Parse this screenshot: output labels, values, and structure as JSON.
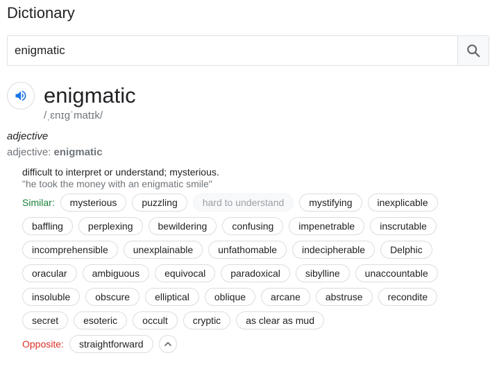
{
  "title": "Dictionary",
  "search": {
    "value": "enigmatic",
    "placeholder": ""
  },
  "entry": {
    "word": "enigmatic",
    "phonetic": "/ˌɛnɪɡˈmatɪk/",
    "part_of_speech": "adjective",
    "forms_label": "adjective: ",
    "forms_value": "enigmatic",
    "definition": "difficult to interpret or understand; mysterious.",
    "example": "\"he took the money with an enigmatic smile\""
  },
  "similar_label": "Similar:",
  "similar_rows": [
    [
      "mysterious",
      "puzzling",
      "hard to understand",
      "mystifying",
      "inexplicable"
    ],
    [
      "baffling",
      "perplexing",
      "bewildering",
      "confusing",
      "impenetrable",
      "inscrutable"
    ],
    [
      "incomprehensible",
      "unexplainable",
      "unfathomable",
      "indecipherable",
      "Delphic"
    ],
    [
      "oracular",
      "ambiguous",
      "equivocal",
      "paradoxical",
      "sibylline",
      "unaccountable"
    ],
    [
      "insoluble",
      "obscure",
      "elliptical",
      "oblique",
      "arcane",
      "abstruse",
      "recondite"
    ],
    [
      "secret",
      "esoteric",
      "occult",
      "cryptic",
      "as clear as mud"
    ]
  ],
  "disabled_chip": "hard to understand",
  "opposite_label": "Opposite:",
  "opposites": [
    "straightforward"
  ],
  "icons": {
    "search": "search-icon",
    "speaker": "speaker-icon",
    "collapse": "chevron-up-icon"
  },
  "colors": {
    "accent_blue": "#1a73e8",
    "similar_green": "#188038",
    "opposite_red": "#d93025",
    "muted_text": "#70757a"
  }
}
